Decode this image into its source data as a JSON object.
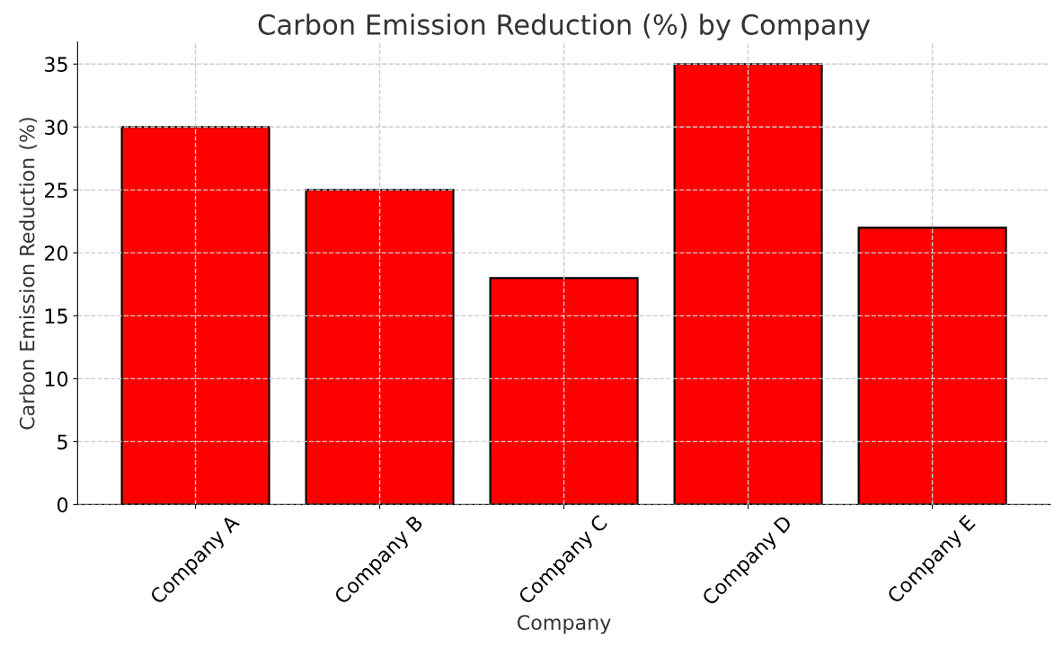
{
  "chart_data": {
    "type": "bar",
    "title": "Carbon Emission Reduction (%) by Company",
    "xlabel": "Company",
    "ylabel": "Carbon Emission Reduction (%)",
    "categories": [
      "Company A",
      "Company B",
      "Company C",
      "Company D",
      "Company E"
    ],
    "values": [
      30,
      25,
      18,
      35,
      22
    ],
    "color": "#ff0000",
    "ylim": [
      0,
      36.75
    ],
    "yticks": [
      0,
      5,
      10,
      15,
      20,
      25,
      30,
      35
    ],
    "grid": true
  }
}
